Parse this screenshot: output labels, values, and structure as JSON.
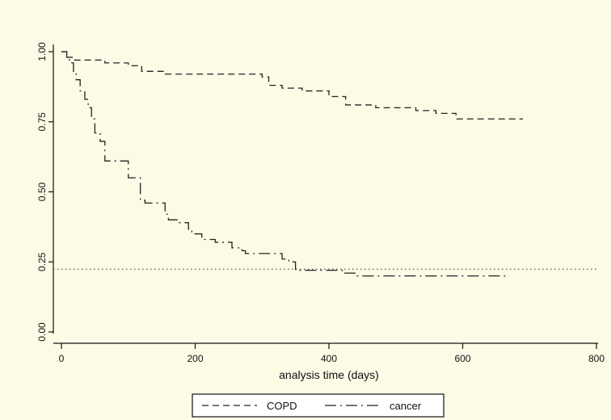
{
  "chart_data": {
    "type": "line",
    "title": "",
    "xlabel": "analysis time (days)",
    "ylabel": "",
    "xlim": [
      0,
      800
    ],
    "ylim": [
      0,
      1
    ],
    "x_ticks": [
      0,
      200,
      400,
      600,
      800
    ],
    "x_tick_labels": [
      "0",
      "200",
      "400",
      "600",
      "800"
    ],
    "y_ticks": [
      0,
      0.25,
      0.5,
      0.75,
      1
    ],
    "y_tick_labels": [
      "0.00",
      "0.25",
      "0.50",
      "0.75",
      "1.00"
    ],
    "grid": false,
    "legend": {
      "position": "bottom",
      "entries": [
        "COPD",
        "cancer"
      ]
    },
    "reference_line": {
      "y": 0.25,
      "style": "dotted"
    },
    "series": [
      {
        "name": "COPD",
        "line_style": "dashed",
        "x": [
          0,
          8,
          20,
          65,
          100,
          120,
          155,
          300,
          310,
          330,
          360,
          400,
          425,
          470,
          530,
          560,
          590,
          690
        ],
        "y": [
          1.0,
          0.98,
          0.97,
          0.96,
          0.95,
          0.93,
          0.92,
          0.91,
          0.88,
          0.87,
          0.86,
          0.84,
          0.81,
          0.8,
          0.79,
          0.78,
          0.76,
          0.76
        ]
      },
      {
        "name": "cancer",
        "line_style": "dash-dot",
        "x": [
          0,
          8,
          12,
          18,
          22,
          28,
          35,
          40,
          45,
          50,
          58,
          65,
          90,
          100,
          118,
          125,
          155,
          160,
          175,
          190,
          195,
          210,
          230,
          240,
          255,
          270,
          275,
          290,
          300,
          320,
          330,
          340,
          350,
          420,
          440,
          590,
          670
        ],
        "y": [
          1.0,
          0.98,
          0.96,
          0.93,
          0.9,
          0.86,
          0.83,
          0.8,
          0.76,
          0.71,
          0.68,
          0.61,
          0.61,
          0.55,
          0.47,
          0.46,
          0.42,
          0.4,
          0.39,
          0.36,
          0.35,
          0.33,
          0.32,
          0.32,
          0.3,
          0.29,
          0.28,
          0.28,
          0.28,
          0.28,
          0.26,
          0.25,
          0.22,
          0.21,
          0.2,
          0.2,
          0.2
        ]
      }
    ]
  }
}
